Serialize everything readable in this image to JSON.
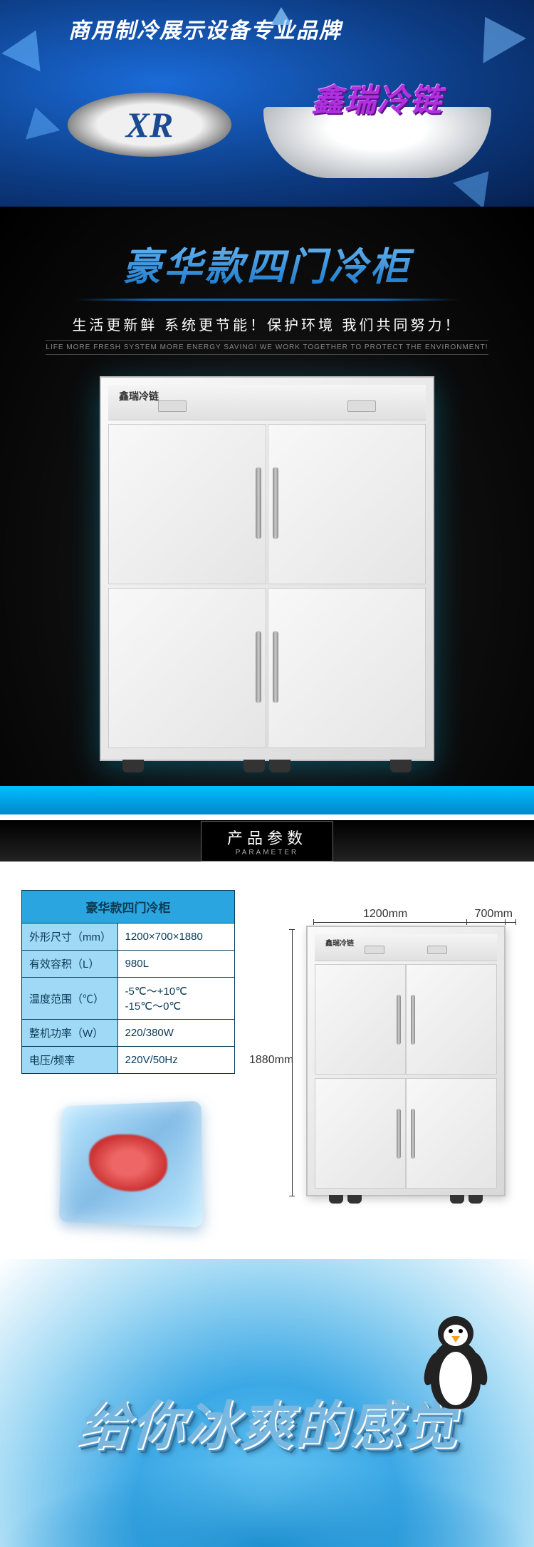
{
  "banner": {
    "tagline": "商用制冷展示设备专业品牌",
    "logo_text": "XR",
    "brand_text": "鑫瑞冷链",
    "colors": {
      "bg_inner": "#1a6bd8",
      "bg_outer": "#062050",
      "brand_color": "#b030e0"
    }
  },
  "hero": {
    "title": "豪华款四门冷柜",
    "subtitle": "生活更新鲜 系统更节能！保护环境 我们共同努力！",
    "subtitle_en": "LIFE MORE FRESH SYSTEM MORE ENERGY SAVING! WE WORK TOGETHER TO PROTECT THE ENVIRONMENT!",
    "title_gradient_from": "#7ec8ff",
    "title_gradient_to": "#0a6abf",
    "platform_color": "#00bfff"
  },
  "spec": {
    "section_label": "产品参数",
    "section_label_en": "PARAMETER",
    "table_title": "豪华款四门冷柜",
    "header_bg": "#2aa5e0",
    "key_bg": "#9fd9f5",
    "border_color": "#0a3a55",
    "rows": [
      {
        "k": "外形尺寸（mm）",
        "v": "1200×700×1880"
      },
      {
        "k": "有效容积（L）",
        "v": "980L"
      },
      {
        "k": "温度范围（℃）",
        "v": "-5℃～+10℃\n-15℃～0℃"
      },
      {
        "k": "整机功率（W）",
        "v": "220/380W"
      },
      {
        "k": "电压/频率",
        "v": "220V/50Hz"
      }
    ],
    "dimensions": {
      "width": "1200mm",
      "depth": "700mm",
      "height": "1880mm"
    }
  },
  "splash": {
    "text": "给你冰爽的感觉",
    "text_color": "#78b8e0",
    "bg_from": "#6ac8f5",
    "bg_to": "#ffffff"
  }
}
